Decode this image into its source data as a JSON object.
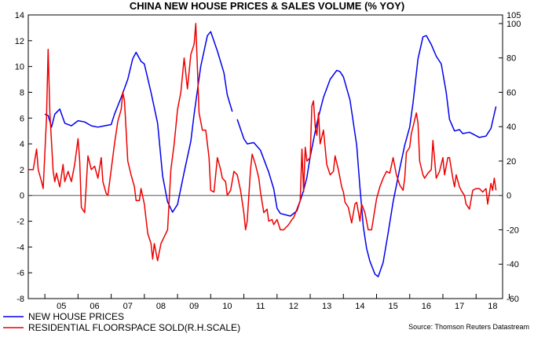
{
  "chart_data": {
    "type": "line",
    "title": "CHINA NEW HOUSE PRICES & SALES VOLUME (% YOY)",
    "source": "Source: Thomson Reuters Datastream",
    "x_categories": [
      "05",
      "06",
      "07",
      "08",
      "09",
      "10",
      "11",
      "12",
      "13",
      "14",
      "15",
      "16",
      "17",
      "18"
    ],
    "x_range": [
      2004.5,
      2018.8
    ],
    "left_axis": {
      "ylim": [
        -8,
        14
      ],
      "ticks": [
        "14",
        "12",
        "10",
        "8",
        "6",
        "4",
        "2",
        "0",
        "-2",
        "-4",
        "-6",
        "-8"
      ]
    },
    "right_axis": {
      "ylim": [
        -60,
        105
      ],
      "ticks": [
        "105",
        "100",
        "80",
        "60",
        "40",
        "20",
        "0",
        "-20",
        "-40",
        "-60"
      ]
    },
    "zero_line": true,
    "legend_placement": "bottom-left",
    "series": [
      {
        "name": "NEW HOUSE PRICES",
        "color": "#0000ee",
        "axis": "left",
        "segments": [
          [
            [
              2005.0,
              6.3
            ],
            [
              2005.1,
              6.2
            ],
            [
              2005.2,
              5.3
            ],
            [
              2005.3,
              6.3
            ],
            [
              2005.45,
              6.7
            ],
            [
              2005.6,
              5.6
            ],
            [
              2005.8,
              5.4
            ],
            [
              2006.0,
              5.8
            ],
            [
              2006.2,
              5.7
            ],
            [
              2006.4,
              5.4
            ],
            [
              2006.6,
              5.3
            ],
            [
              2006.8,
              5.4
            ],
            [
              2007.0,
              5.5
            ],
            [
              2007.1,
              6.3
            ],
            [
              2007.3,
              7.6
            ],
            [
              2007.5,
              9.0
            ],
            [
              2007.65,
              10.6
            ],
            [
              2007.75,
              11.1
            ],
            [
              2007.9,
              10.4
            ],
            [
              2008.0,
              10.2
            ],
            [
              2008.2,
              8.0
            ],
            [
              2008.4,
              5.6
            ],
            [
              2008.55,
              1.5
            ],
            [
              2008.7,
              -0.5
            ],
            [
              2008.85,
              -1.3
            ],
            [
              2009.0,
              -0.7
            ],
            [
              2009.2,
              1.8
            ],
            [
              2009.4,
              4.2
            ],
            [
              2009.5,
              6.3
            ],
            [
              2009.7,
              10.0
            ],
            [
              2009.9,
              12.4
            ],
            [
              2010.0,
              12.7
            ],
            [
              2010.2,
              11.2
            ],
            [
              2010.4,
              9.5
            ],
            [
              2010.5,
              7.8
            ],
            [
              2010.65,
              6.5
            ]
          ],
          [
            [
              2010.8,
              5.9
            ],
            [
              2011.0,
              4.4
            ],
            [
              2011.1,
              4.0
            ],
            [
              2011.3,
              4.1
            ],
            [
              2011.5,
              3.5
            ],
            [
              2011.75,
              1.8
            ],
            [
              2011.9,
              0.5
            ],
            [
              2012.0,
              -1.0
            ],
            [
              2012.1,
              -1.4
            ],
            [
              2012.4,
              -1.6
            ],
            [
              2012.6,
              -1.2
            ],
            [
              2012.8,
              0.4
            ],
            [
              2012.9,
              1.4
            ],
            [
              2013.0,
              3.0
            ],
            [
              2013.2,
              5.6
            ],
            [
              2013.4,
              7.6
            ],
            [
              2013.6,
              9.0
            ],
            [
              2013.8,
              9.7
            ],
            [
              2013.9,
              9.6
            ],
            [
              2014.0,
              9.2
            ],
            [
              2014.2,
              7.4
            ],
            [
              2014.4,
              3.9
            ],
            [
              2014.5,
              0.6
            ],
            [
              2014.6,
              -2.4
            ],
            [
              2014.7,
              -4.1
            ],
            [
              2014.8,
              -5.1
            ],
            [
              2014.95,
              -6.1
            ],
            [
              2015.05,
              -6.3
            ],
            [
              2015.2,
              -5.2
            ],
            [
              2015.35,
              -2.9
            ],
            [
              2015.5,
              -0.5
            ],
            [
              2015.7,
              2.1
            ],
            [
              2015.85,
              3.9
            ],
            [
              2016.0,
              5.3
            ],
            [
              2016.1,
              7.2
            ],
            [
              2016.25,
              10.6
            ],
            [
              2016.4,
              12.3
            ],
            [
              2016.5,
              12.4
            ],
            [
              2016.65,
              11.7
            ],
            [
              2016.8,
              10.8
            ],
            [
              2016.95,
              10.2
            ],
            [
              2017.1,
              8.0
            ],
            [
              2017.2,
              5.9
            ],
            [
              2017.35,
              5.0
            ],
            [
              2017.5,
              5.1
            ],
            [
              2017.6,
              4.8
            ],
            [
              2017.8,
              4.9
            ],
            [
              2017.95,
              4.7
            ],
            [
              2018.1,
              4.5
            ],
            [
              2018.3,
              4.6
            ],
            [
              2018.45,
              5.2
            ],
            [
              2018.6,
              6.9
            ]
          ]
        ]
      },
      {
        "name": "RESIDENTIAL FLOORSPACE SOLD(R.H.SCALE)",
        "color": "#ee0000",
        "axis": "right",
        "segments": [
          [
            [
              2004.5,
              15
            ],
            [
              2004.65,
              15
            ],
            [
              2004.75,
              27
            ],
            [
              2004.8,
              15
            ],
            [
              2004.9,
              8
            ],
            [
              2004.95,
              4
            ],
            [
              2005.05,
              45
            ],
            [
              2005.1,
              85
            ],
            [
              2005.15,
              48
            ],
            [
              2005.25,
              14
            ],
            [
              2005.3,
              8
            ],
            [
              2005.35,
              13
            ],
            [
              2005.45,
              5
            ],
            [
              2005.55,
              18
            ],
            [
              2005.6,
              8
            ],
            [
              2005.7,
              14
            ],
            [
              2005.8,
              8
            ],
            [
              2005.9,
              18
            ],
            [
              2006.0,
              33
            ],
            [
              2006.05,
              20
            ],
            [
              2006.1,
              -7
            ],
            [
              2006.2,
              -10
            ],
            [
              2006.3,
              23
            ],
            [
              2006.4,
              15
            ],
            [
              2006.5,
              17
            ],
            [
              2006.6,
              10
            ],
            [
              2006.7,
              22
            ],
            [
              2006.75,
              8
            ],
            [
              2006.85,
              1
            ],
            [
              2006.9,
              0
            ],
            [
              2007.0,
              15
            ],
            [
              2007.1,
              30
            ],
            [
              2007.2,
              43
            ],
            [
              2007.3,
              50
            ],
            [
              2007.35,
              60
            ],
            [
              2007.4,
              55
            ],
            [
              2007.45,
              38
            ],
            [
              2007.5,
              20
            ],
            [
              2007.6,
              12
            ],
            [
              2007.7,
              5
            ],
            [
              2007.75,
              -3
            ],
            [
              2007.85,
              -3
            ],
            [
              2007.9,
              4
            ],
            [
              2008.0,
              -5
            ],
            [
              2008.1,
              -22
            ],
            [
              2008.2,
              -28
            ],
            [
              2008.25,
              -37
            ],
            [
              2008.3,
              -28
            ],
            [
              2008.4,
              -38
            ],
            [
              2008.5,
              -28
            ],
            [
              2008.6,
              -24
            ],
            [
              2008.7,
              -20
            ],
            [
              2008.8,
              15
            ],
            [
              2008.9,
              30
            ],
            [
              2009.0,
              50
            ],
            [
              2009.1,
              60
            ],
            [
              2009.15,
              70
            ],
            [
              2009.2,
              80
            ],
            [
              2009.3,
              62
            ],
            [
              2009.4,
              82
            ],
            [
              2009.5,
              88
            ],
            [
              2009.55,
              100
            ],
            [
              2009.65,
              48
            ],
            [
              2009.75,
              38
            ],
            [
              2009.85,
              38
            ],
            [
              2009.95,
              22
            ],
            [
              2010.0,
              3
            ],
            [
              2010.1,
              2
            ],
            [
              2010.2,
              22
            ],
            [
              2010.3,
              15
            ],
            [
              2010.35,
              10
            ],
            [
              2010.45,
              8
            ],
            [
              2010.5,
              0
            ],
            [
              2010.6,
              3
            ],
            [
              2010.7,
              14
            ],
            [
              2010.8,
              12
            ],
            [
              2010.9,
              3
            ],
            [
              2011.0,
              -10
            ],
            [
              2011.05,
              -20
            ],
            [
              2011.1,
              -15
            ],
            [
              2011.2,
              15
            ],
            [
              2011.25,
              24
            ],
            [
              2011.35,
              18
            ],
            [
              2011.45,
              10
            ],
            [
              2011.5,
              2
            ],
            [
              2011.6,
              -10
            ],
            [
              2011.7,
              -8
            ],
            [
              2011.75,
              -15
            ],
            [
              2011.85,
              -14
            ],
            [
              2011.9,
              -17
            ],
            [
              2012.0,
              -14
            ],
            [
              2012.1,
              -20
            ],
            [
              2012.2,
              -20
            ],
            [
              2012.3,
              -18
            ],
            [
              2012.35,
              -17
            ],
            [
              2012.45,
              -14
            ],
            [
              2012.5,
              -13
            ],
            [
              2012.6,
              -8
            ],
            [
              2012.7,
              -3
            ],
            [
              2012.75,
              27
            ],
            [
              2012.8,
              2
            ],
            [
              2012.85,
              28
            ],
            [
              2012.9,
              20
            ],
            [
              2013.0,
              22
            ],
            [
              2013.05,
              52
            ],
            [
              2013.1,
              55
            ],
            [
              2013.15,
              40
            ],
            [
              2013.2,
              35
            ],
            [
              2013.25,
              48
            ],
            [
              2013.3,
              30
            ],
            [
              2013.4,
              38
            ],
            [
              2013.5,
              18
            ],
            [
              2013.6,
              12
            ],
            [
              2013.7,
              14
            ],
            [
              2013.75,
              23
            ],
            [
              2013.85,
              15
            ],
            [
              2013.95,
              5
            ],
            [
              2014.0,
              2
            ],
            [
              2014.05,
              -4
            ],
            [
              2014.15,
              -7
            ],
            [
              2014.25,
              -16
            ],
            [
              2014.35,
              -5
            ],
            [
              2014.4,
              -4
            ],
            [
              2014.5,
              -15
            ],
            [
              2014.55,
              -5
            ],
            [
              2014.65,
              -10
            ],
            [
              2014.75,
              -20
            ],
            [
              2014.85,
              -20
            ],
            [
              2014.95,
              -8
            ],
            [
              2015.0,
              -2
            ],
            [
              2015.1,
              5
            ],
            [
              2015.2,
              10
            ],
            [
              2015.3,
              14
            ],
            [
              2015.4,
              13
            ],
            [
              2015.5,
              22
            ],
            [
              2015.6,
              12
            ],
            [
              2015.7,
              6
            ],
            [
              2015.8,
              3
            ],
            [
              2015.85,
              10
            ],
            [
              2015.9,
              25
            ],
            [
              2016.0,
              28
            ],
            [
              2016.05,
              36
            ],
            [
              2016.1,
              40
            ],
            [
              2016.2,
              48
            ],
            [
              2016.25,
              42
            ],
            [
              2016.3,
              20
            ],
            [
              2016.4,
              12
            ],
            [
              2016.45,
              10
            ],
            [
              2016.55,
              13
            ],
            [
              2016.65,
              15
            ],
            [
              2016.7,
              32
            ],
            [
              2016.8,
              10
            ],
            [
              2016.9,
              14
            ],
            [
              2017.0,
              22
            ],
            [
              2017.05,
              12
            ],
            [
              2017.15,
              22
            ],
            [
              2017.2,
              22
            ],
            [
              2017.3,
              10
            ],
            [
              2017.35,
              5
            ],
            [
              2017.4,
              12
            ],
            [
              2017.5,
              5
            ],
            [
              2017.55,
              3
            ],
            [
              2017.65,
              0
            ],
            [
              2017.7,
              -5
            ],
            [
              2017.8,
              -8
            ],
            [
              2017.9,
              3
            ],
            [
              2018.0,
              4
            ],
            [
              2018.1,
              4
            ],
            [
              2018.2,
              2
            ],
            [
              2018.3,
              4
            ],
            [
              2018.35,
              -5
            ],
            [
              2018.45,
              7
            ],
            [
              2018.5,
              3
            ],
            [
              2018.55,
              10
            ],
            [
              2018.6,
              3
            ]
          ]
        ]
      }
    ]
  }
}
